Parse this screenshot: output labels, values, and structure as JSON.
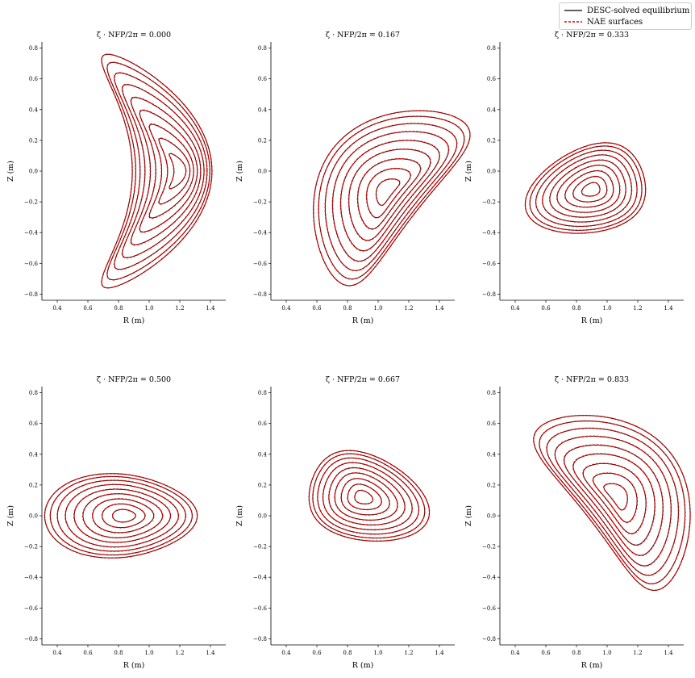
{
  "legend": {
    "entries": [
      {
        "label": "DESC-solved equilibrium",
        "color": "#000000",
        "style": "solid"
      },
      {
        "label": "NAE surfaces",
        "color": "#d40000",
        "style": "dashed"
      }
    ]
  },
  "chart_data": [
    {
      "type": "line",
      "title": "ζ · NFP/2π = 0.000",
      "phase": 0.0,
      "xlabel": "R (m)",
      "ylabel": "Z (m)",
      "xlim": [
        0.3,
        1.5
      ],
      "ylim": [
        -0.84,
        0.84
      ],
      "xticks": [
        "0.4",
        "0.6",
        "0.8",
        "1.0",
        "1.2",
        "1.4"
      ],
      "yticks": [
        "−0.8",
        "−0.6",
        "−0.4",
        "−0.2",
        "0.0",
        "0.2",
        "0.4",
        "0.6",
        "0.8"
      ],
      "series": [
        {
          "values": []
        },
        {
          "values": []
        }
      ]
    },
    {
      "type": "line",
      "title": "ζ · NFP/2π = 0.167",
      "phase": 0.167,
      "xlabel": "R (m)",
      "ylabel": "Z (m)",
      "xlim": [
        0.3,
        1.5
      ],
      "ylim": [
        -0.84,
        0.84
      ],
      "xticks": [
        "0.4",
        "0.6",
        "0.8",
        "1.0",
        "1.2",
        "1.4"
      ],
      "yticks": [
        "−0.8",
        "−0.6",
        "−0.4",
        "−0.2",
        "0.0",
        "0.2",
        "0.4",
        "0.6",
        "0.8"
      ],
      "series": [
        {
          "values": []
        },
        {
          "values": []
        }
      ]
    },
    {
      "type": "line",
      "title": "ζ · NFP/2π = 0.333",
      "phase": 0.333,
      "xlabel": "R (m)",
      "ylabel": "Z (m)",
      "xlim": [
        0.3,
        1.5
      ],
      "ylim": [
        -0.84,
        0.84
      ],
      "xticks": [
        "0.4",
        "0.6",
        "0.8",
        "1.0",
        "1.2",
        "1.4"
      ],
      "yticks": [
        "−0.8",
        "−0.6",
        "−0.4",
        "−0.2",
        "0.0",
        "0.2",
        "0.4",
        "0.6",
        "0.8"
      ],
      "series": [
        {
          "values": []
        },
        {
          "values": []
        }
      ]
    },
    {
      "type": "line",
      "title": "ζ · NFP/2π = 0.500",
      "phase": 0.5,
      "xlabel": "R (m)",
      "ylabel": "Z (m)",
      "xlim": [
        0.3,
        1.5
      ],
      "ylim": [
        -0.84,
        0.84
      ],
      "xticks": [
        "0.4",
        "0.6",
        "0.8",
        "1.0",
        "1.2",
        "1.4"
      ],
      "yticks": [
        "−0.8",
        "−0.6",
        "−0.4",
        "−0.2",
        "0.0",
        "0.2",
        "0.4",
        "0.6",
        "0.8"
      ],
      "series": [
        {
          "values": []
        },
        {
          "values": []
        }
      ]
    },
    {
      "type": "line",
      "title": "ζ · NFP/2π = 0.667",
      "phase": 0.667,
      "xlabel": "R (m)",
      "ylabel": "Z (m)",
      "xlim": [
        0.3,
        1.5
      ],
      "ylim": [
        -0.84,
        0.84
      ],
      "xticks": [
        "0.4",
        "0.6",
        "0.8",
        "1.0",
        "1.2",
        "1.4"
      ],
      "yticks": [
        "−0.8",
        "−0.6",
        "−0.4",
        "−0.2",
        "0.0",
        "0.2",
        "0.4",
        "0.6",
        "0.8"
      ],
      "series": [
        {
          "values": []
        },
        {
          "values": []
        }
      ]
    },
    {
      "type": "line",
      "title": "ζ · NFP/2π = 0.833",
      "phase": 0.833,
      "xlabel": "R (m)",
      "ylabel": "Z (m)",
      "xlim": [
        0.3,
        1.5
      ],
      "ylim": [
        -0.84,
        0.84
      ],
      "xticks": [
        "0.4",
        "0.6",
        "0.8",
        "1.0",
        "1.2",
        "1.4"
      ],
      "yticks": [
        "−0.8",
        "−0.6",
        "−0.4",
        "−0.2",
        "0.0",
        "0.2",
        "0.4",
        "0.6",
        "0.8"
      ],
      "series": [
        {
          "values": []
        },
        {
          "values": []
        }
      ]
    }
  ]
}
